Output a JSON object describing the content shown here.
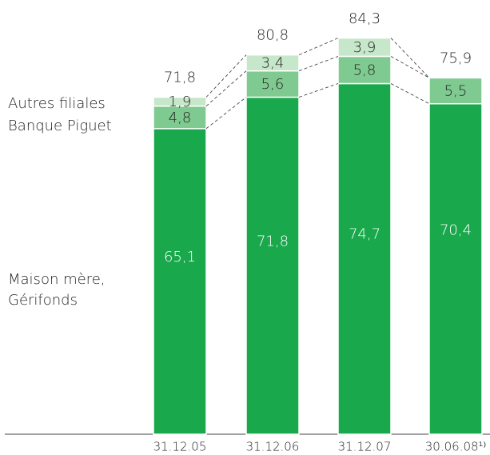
{
  "chart_data": {
    "type": "stacked-bar",
    "categories": [
      "31.12.05",
      "31.12.06",
      "31.12.07",
      "30.06.08¹⁾"
    ],
    "series": [
      {
        "name": "Maison mère, Gérifonds",
        "color": "#19a84b",
        "values": [
          65.1,
          71.8,
          74.7,
          70.4
        ],
        "value_labels": [
          "65,1",
          "71,8",
          "74,7",
          "70,4"
        ]
      },
      {
        "name": "Banque Piguet",
        "color": "#7fca90",
        "values": [
          4.8,
          5.6,
          5.8,
          5.5
        ],
        "value_labels": [
          "4,8",
          "5,6",
          "5,8",
          "5,5"
        ]
      },
      {
        "name": "Autres filiales",
        "color": "#c6e7ca",
        "values": [
          1.9,
          3.4,
          3.9,
          null
        ],
        "value_labels": [
          "1,9",
          "3,4",
          "3,9",
          null
        ]
      }
    ],
    "totals": [
      71.8,
      80.8,
      84.3,
      75.9
    ],
    "total_labels": [
      "71,8",
      "80,8",
      "84,3",
      "75,9"
    ],
    "ylim": [
      0,
      92.5
    ]
  }
}
